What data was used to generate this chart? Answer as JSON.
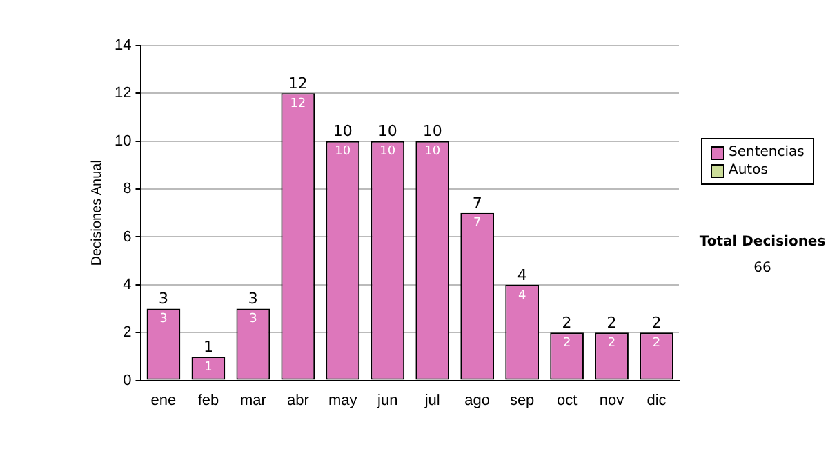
{
  "chart_data": {
    "type": "bar",
    "ylabel": "Decisiones Anual",
    "categories": [
      "ene",
      "feb",
      "mar",
      "abr",
      "may",
      "jun",
      "jul",
      "ago",
      "sep",
      "oct",
      "nov",
      "dic"
    ],
    "series": [
      {
        "name": "Sentencias",
        "color": "#dd77bb",
        "values": [
          3,
          1,
          3,
          12,
          10,
          10,
          10,
          7,
          4,
          2,
          2,
          2
        ],
        "value_labels": [
          "3",
          "1",
          "3",
          "12",
          "10",
          "10",
          "10",
          "7",
          "4",
          "2",
          "2",
          "2"
        ]
      },
      {
        "name": "Autos",
        "color": "#ccdd99",
        "values": [
          0,
          0,
          0,
          0,
          0,
          0,
          0,
          0,
          0,
          0,
          0,
          0
        ]
      }
    ],
    "stacked": true,
    "totals": [
      "3",
      "1",
      "3",
      "12",
      "10",
      "10",
      "10",
      "7",
      "4",
      "2",
      "2",
      "2"
    ],
    "ylim": [
      0,
      14
    ],
    "yticks": [
      0,
      2,
      4,
      6,
      8,
      10,
      12,
      14
    ],
    "grid": "y",
    "legend": "right",
    "annotations": [
      "Total Decisiones",
      "66"
    ]
  }
}
